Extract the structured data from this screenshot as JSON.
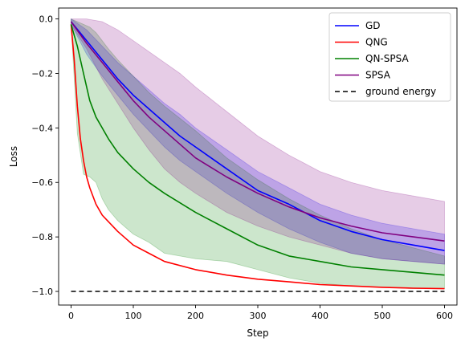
{
  "chart_data": {
    "type": "line",
    "title": "",
    "xlabel": "Step",
    "ylabel": "Loss",
    "xlim": [
      -20,
      620
    ],
    "ylim": [
      -1.05,
      0.04
    ],
    "xticks": [
      0,
      100,
      200,
      300,
      400,
      500,
      600
    ],
    "yticks": [
      0.0,
      -0.2,
      -0.4,
      -0.6,
      -0.8,
      -1.0
    ],
    "xtick_labels": [
      "0",
      "100",
      "200",
      "300",
      "400",
      "500",
      "600"
    ],
    "ytick_labels": [
      "0.0",
      "−0.2",
      "−0.4",
      "−0.6",
      "−0.8",
      "−1.0"
    ],
    "grid": false,
    "legend_position": "top-right",
    "series": [
      {
        "name": "GD",
        "color": "#0000ff",
        "x": [
          0,
          25,
          50,
          75,
          100,
          125,
          150,
          175,
          200,
          250,
          300,
          350,
          400,
          450,
          500,
          550,
          600
        ],
        "values": [
          -0.01,
          -0.08,
          -0.15,
          -0.22,
          -0.28,
          -0.33,
          -0.38,
          -0.43,
          -0.47,
          -0.55,
          -0.63,
          -0.68,
          -0.74,
          -0.78,
          -0.81,
          -0.83,
          -0.85
        ],
        "band_lower": [
          -0.02,
          -0.13,
          -0.21,
          -0.28,
          -0.35,
          -0.41,
          -0.47,
          -0.52,
          -0.56,
          -0.64,
          -0.71,
          -0.77,
          -0.82,
          -0.86,
          -0.88,
          -0.89,
          -0.9
        ],
        "band_upper": [
          0.0,
          -0.04,
          -0.1,
          -0.16,
          -0.21,
          -0.26,
          -0.31,
          -0.35,
          -0.4,
          -0.48,
          -0.56,
          -0.62,
          -0.68,
          -0.72,
          -0.75,
          -0.77,
          -0.79
        ]
      },
      {
        "name": "QNG",
        "color": "#ff0000",
        "x": [
          0,
          5,
          10,
          15,
          20,
          25,
          30,
          40,
          50,
          75,
          100,
          125,
          150,
          200,
          250,
          300,
          350,
          400,
          450,
          500,
          550,
          600
        ],
        "values": [
          -0.02,
          -0.15,
          -0.32,
          -0.44,
          -0.52,
          -0.58,
          -0.62,
          -0.68,
          -0.72,
          -0.78,
          -0.83,
          -0.86,
          -0.89,
          -0.92,
          -0.94,
          -0.955,
          -0.965,
          -0.975,
          -0.98,
          -0.985,
          -0.988,
          -0.99
        ]
      },
      {
        "name": "QN-SPSA",
        "color": "#008000",
        "x": [
          0,
          10,
          20,
          30,
          40,
          50,
          60,
          75,
          100,
          125,
          150,
          200,
          250,
          300,
          350,
          400,
          450,
          500,
          550,
          600
        ],
        "values": [
          -0.02,
          -0.1,
          -0.2,
          -0.3,
          -0.36,
          -0.4,
          -0.44,
          -0.49,
          -0.55,
          -0.6,
          -0.64,
          -0.71,
          -0.77,
          -0.83,
          -0.87,
          -0.89,
          -0.91,
          -0.92,
          -0.93,
          -0.94
        ],
        "band_lower": [
          -0.02,
          -0.42,
          -0.57,
          -0.58,
          -0.6,
          -0.66,
          -0.7,
          -0.74,
          -0.79,
          -0.82,
          -0.86,
          -0.88,
          -0.89,
          -0.92,
          -0.95,
          -0.97,
          -0.98,
          -0.985,
          -0.99,
          -0.99
        ],
        "band_upper": [
          0.0,
          -0.01,
          -0.02,
          -0.03,
          -0.05,
          -0.08,
          -0.11,
          -0.15,
          -0.21,
          -0.27,
          -0.32,
          -0.41,
          -0.51,
          -0.59,
          -0.66,
          -0.72,
          -0.77,
          -0.81,
          -0.84,
          -0.87
        ]
      },
      {
        "name": "SPSA",
        "color": "#800080",
        "x": [
          0,
          25,
          50,
          75,
          100,
          125,
          150,
          175,
          200,
          250,
          300,
          350,
          400,
          450,
          500,
          550,
          600
        ],
        "values": [
          -0.01,
          -0.09,
          -0.16,
          -0.23,
          -0.3,
          -0.36,
          -0.41,
          -0.46,
          -0.51,
          -0.58,
          -0.64,
          -0.69,
          -0.73,
          -0.76,
          -0.785,
          -0.8,
          -0.815
        ],
        "band_lower": [
          -0.02,
          -0.11,
          -0.22,
          -0.31,
          -0.4,
          -0.48,
          -0.55,
          -0.6,
          -0.64,
          -0.71,
          -0.76,
          -0.8,
          -0.83,
          -0.86,
          -0.88,
          -0.89,
          -0.9
        ],
        "band_upper": [
          0.0,
          0.0,
          -0.01,
          -0.04,
          -0.08,
          -0.12,
          -0.16,
          -0.2,
          -0.25,
          -0.34,
          -0.43,
          -0.5,
          -0.56,
          -0.6,
          -0.63,
          -0.65,
          -0.67
        ]
      },
      {
        "name": "ground energy",
        "color": "#000000",
        "dashed": true,
        "x": [
          0,
          600
        ],
        "values": [
          -1.0,
          -1.0
        ]
      }
    ]
  }
}
